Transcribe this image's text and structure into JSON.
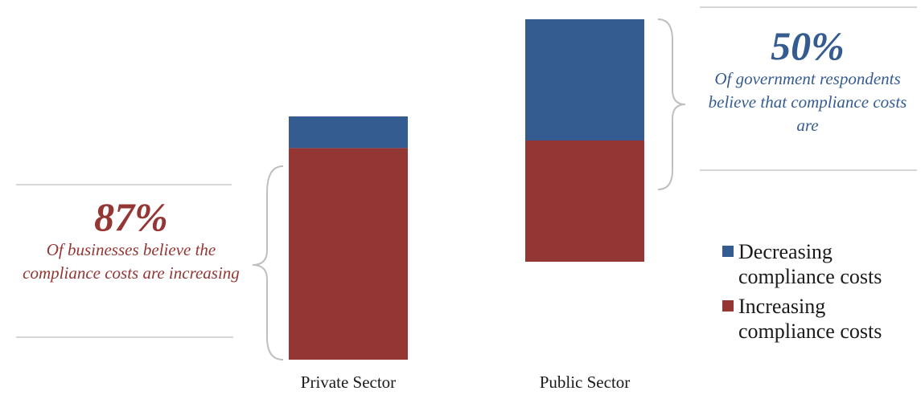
{
  "colors": {
    "decreasing": "#355c90",
    "increasing": "#943634",
    "rule": "#c8c8c8",
    "brace": "#bfbfbf"
  },
  "chart_data": {
    "type": "bar",
    "stacked": true,
    "categories": [
      "Private Sector",
      "Public Sector"
    ],
    "series": [
      {
        "name": "Increasing compliance costs",
        "values": [
          87,
          50
        ],
        "color": "#943634"
      },
      {
        "name": "Decreasing compliance costs",
        "values": [
          13,
          50
        ],
        "color": "#355c90"
      }
    ],
    "ylim": [
      0,
      100
    ],
    "grid": false,
    "legend_position": "right",
    "legend": [
      "Decreasing compliance costs",
      "Increasing compliance costs"
    ]
  },
  "callouts": {
    "private": {
      "value": "87%",
      "text": "Of businesses believe the compliance costs are increasing"
    },
    "public": {
      "value": "50%",
      "text": "Of government respondents believe that compliance costs are"
    }
  }
}
